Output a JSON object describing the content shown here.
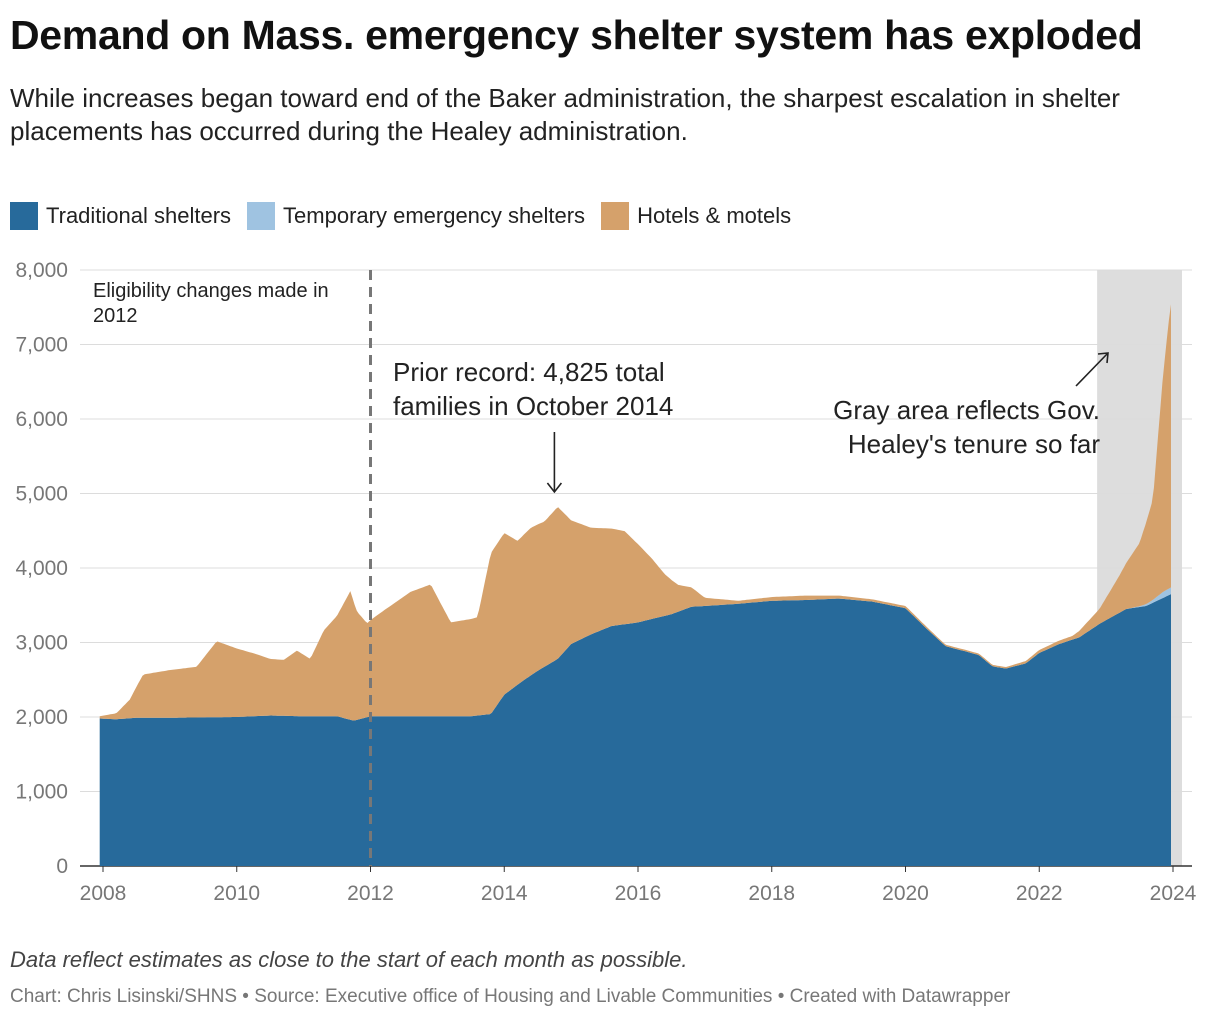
{
  "header": {
    "title": "Demand on Mass. emergency shelter system has exploded",
    "subtitle": "While increases began toward end of the Baker administration, the sharpest escalation in shelter placements has occurred during the Healey administration."
  },
  "footer": {
    "note": "Data reflect estimates as close to the start of each month as possible.",
    "credits": "Chart: Chris Lisinski/SHNS • Source: Executive office of Housing and Livable Communities • Created with Datawrapper"
  },
  "chart_data": {
    "type": "area",
    "stacked": true,
    "xlim": [
      2008,
      2024
    ],
    "ylim": [
      0,
      8000
    ],
    "x_ticks": [
      2008,
      2010,
      2012,
      2014,
      2016,
      2018,
      2020,
      2022,
      2024
    ],
    "x_tick_labels": [
      "2008",
      "2010",
      "2012",
      "2014",
      "2016",
      "2018",
      "2020",
      "2022",
      "2024"
    ],
    "y_ticks": [
      0,
      1000,
      2000,
      3000,
      4000,
      5000,
      6000,
      7000,
      8000
    ],
    "y_tick_labels": [
      "0",
      "1,000",
      "2,000",
      "3,000",
      "4,000",
      "5,000",
      "6,000",
      "7,000",
      "8,000"
    ],
    "grid": true,
    "legend_position": "top-left",
    "series": [
      {
        "name": "Traditional shelters",
        "color": "#276a9b",
        "points": [
          [
            2007.95,
            1980
          ],
          [
            2008.2,
            1970
          ],
          [
            2008.5,
            1990
          ],
          [
            2009.0,
            1990
          ],
          [
            2009.5,
            1995
          ],
          [
            2010.0,
            2000
          ],
          [
            2010.5,
            2020
          ],
          [
            2011.0,
            2010
          ],
          [
            2011.5,
            2010
          ],
          [
            2011.75,
            1950
          ],
          [
            2012.0,
            2010
          ],
          [
            2012.5,
            2010
          ],
          [
            2013.0,
            2010
          ],
          [
            2013.5,
            2010
          ],
          [
            2013.8,
            2040
          ],
          [
            2014.0,
            2300
          ],
          [
            2014.3,
            2500
          ],
          [
            2014.5,
            2620
          ],
          [
            2014.8,
            2780
          ],
          [
            2015.0,
            2980
          ],
          [
            2015.3,
            3110
          ],
          [
            2015.6,
            3220
          ],
          [
            2016.0,
            3270
          ],
          [
            2016.5,
            3380
          ],
          [
            2016.8,
            3480
          ],
          [
            2017.0,
            3490
          ],
          [
            2017.5,
            3520
          ],
          [
            2018.0,
            3560
          ],
          [
            2018.5,
            3570
          ],
          [
            2019.0,
            3590
          ],
          [
            2019.5,
            3550
          ],
          [
            2020.0,
            3460
          ],
          [
            2020.3,
            3200
          ],
          [
            2020.6,
            2950
          ],
          [
            2020.9,
            2880
          ],
          [
            2021.1,
            2830
          ],
          [
            2021.3,
            2680
          ],
          [
            2021.5,
            2650
          ],
          [
            2021.8,
            2720
          ],
          [
            2022.0,
            2860
          ],
          [
            2022.3,
            2980
          ],
          [
            2022.6,
            3070
          ],
          [
            2022.9,
            3250
          ],
          [
            2023.0,
            3300
          ],
          [
            2023.3,
            3450
          ],
          [
            2023.6,
            3490
          ],
          [
            2023.9,
            3620
          ],
          [
            2023.97,
            3650
          ]
        ]
      },
      {
        "name": "Temporary emergency shelters",
        "color": "#9fc3e1",
        "points": [
          [
            2007.95,
            0
          ],
          [
            2023.3,
            0
          ],
          [
            2023.5,
            10
          ],
          [
            2023.7,
            40
          ],
          [
            2023.85,
            80
          ],
          [
            2023.97,
            90
          ]
        ]
      },
      {
        "name": "Hotels & motels",
        "color": "#d5a16b",
        "points": [
          [
            2007.95,
            30
          ],
          [
            2008.2,
            80
          ],
          [
            2008.4,
            250
          ],
          [
            2008.6,
            580
          ],
          [
            2009.0,
            640
          ],
          [
            2009.4,
            680
          ],
          [
            2009.7,
            1020
          ],
          [
            2010.0,
            920
          ],
          [
            2010.3,
            830
          ],
          [
            2010.5,
            760
          ],
          [
            2010.7,
            750
          ],
          [
            2010.9,
            880
          ],
          [
            2011.1,
            770
          ],
          [
            2011.3,
            1150
          ],
          [
            2011.5,
            1350
          ],
          [
            2011.7,
            1730
          ],
          [
            2011.8,
            1450
          ],
          [
            2011.95,
            1260
          ],
          [
            2012.2,
            1420
          ],
          [
            2012.6,
            1670
          ],
          [
            2012.9,
            1770
          ],
          [
            2013.2,
            1260
          ],
          [
            2013.6,
            1320
          ],
          [
            2013.8,
            2160
          ],
          [
            2014.0,
            2170
          ],
          [
            2014.2,
            1930
          ],
          [
            2014.4,
            1980
          ],
          [
            2014.6,
            1950
          ],
          [
            2014.8,
            2040
          ],
          [
            2015.0,
            1660
          ],
          [
            2015.3,
            1430
          ],
          [
            2015.6,
            1310
          ],
          [
            2015.8,
            1250
          ],
          [
            2016.0,
            1050
          ],
          [
            2016.2,
            820
          ],
          [
            2016.4,
            560
          ],
          [
            2016.6,
            360
          ],
          [
            2016.8,
            260
          ],
          [
            2017.0,
            110
          ],
          [
            2017.5,
            40
          ],
          [
            2018.0,
            50
          ],
          [
            2018.5,
            60
          ],
          [
            2019.0,
            40
          ],
          [
            2019.5,
            30
          ],
          [
            2020.0,
            30
          ],
          [
            2020.5,
            20
          ],
          [
            2021.0,
            20
          ],
          [
            2021.5,
            20
          ],
          [
            2022.0,
            40
          ],
          [
            2022.5,
            50
          ],
          [
            2022.9,
            200
          ],
          [
            2023.0,
            300
          ],
          [
            2023.2,
            500
          ],
          [
            2023.5,
            850
          ],
          [
            2023.7,
            1350
          ],
          [
            2023.85,
            2900
          ],
          [
            2023.95,
            3700
          ],
          [
            2023.97,
            3800
          ]
        ]
      }
    ],
    "annotations": [
      {
        "label": "Eligibility changes made in 2012",
        "line1": "Eligibility changes made in",
        "line2": "2012",
        "x": 2012
      },
      {
        "label": "Prior record: 4,825 total families in October 2014",
        "line1": "Prior record: 4,825 total",
        "line2": "families in October 2014",
        "x": 2014.75,
        "y": 4825
      },
      {
        "label": "Gray area reflects Gov. Healey's tenure so far",
        "line1": "Gray area reflects Gov.",
        "line2": "Healey's tenure so far",
        "range": [
          2023.0,
          2024.0
        ]
      }
    ]
  }
}
